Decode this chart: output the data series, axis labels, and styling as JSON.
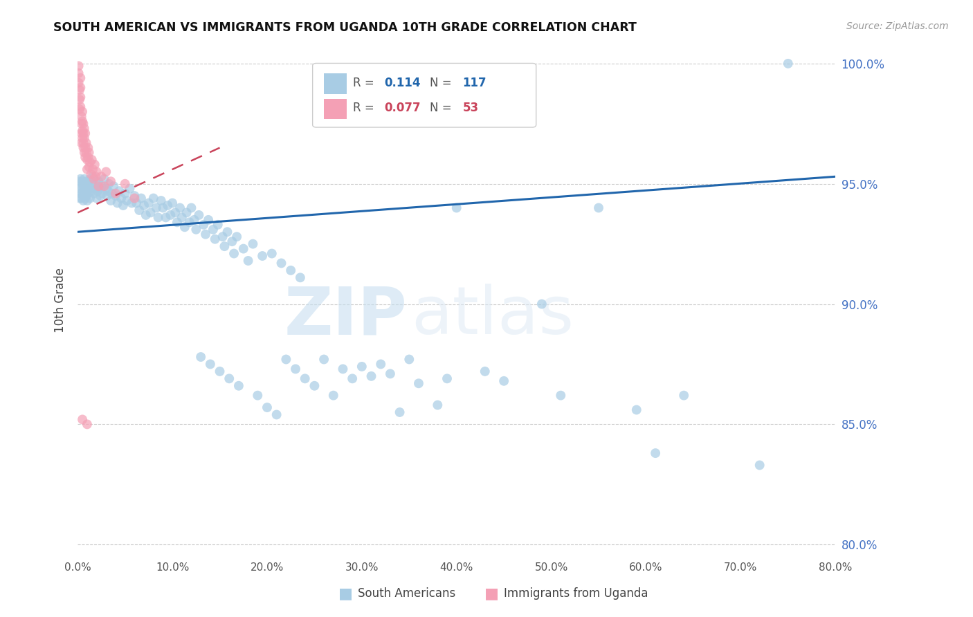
{
  "title": "SOUTH AMERICAN VS IMMIGRANTS FROM UGANDA 10TH GRADE CORRELATION CHART",
  "source": "Source: ZipAtlas.com",
  "ylabel": "10th Grade",
  "watermark_zip": "ZIP",
  "watermark_atlas": "atlas",
  "xmin": 0.0,
  "xmax": 0.8,
  "ymin": 0.795,
  "ymax": 1.008,
  "yticks": [
    0.8,
    0.85,
    0.9,
    0.95,
    1.0
  ],
  "ytick_labels": [
    "80.0%",
    "85.0%",
    "90.0%",
    "95.0%",
    "100.0%"
  ],
  "xticks": [
    0.0,
    0.1,
    0.2,
    0.3,
    0.4,
    0.5,
    0.6,
    0.7,
    0.8
  ],
  "xtick_labels": [
    "0.0%",
    "10.0%",
    "20.0%",
    "30.0%",
    "40.0%",
    "50.0%",
    "60.0%",
    "70.0%",
    "80.0%"
  ],
  "blue_R": 0.114,
  "blue_N": 117,
  "pink_R": 0.077,
  "pink_N": 53,
  "blue_color": "#a8cce4",
  "pink_color": "#f4a0b5",
  "blue_line_color": "#2166ac",
  "pink_line_color": "#c9435a",
  "legend_blue_label": "South Americans",
  "legend_pink_label": "Immigrants from Uganda",
  "blue_trend_x": [
    0.0,
    0.8
  ],
  "blue_trend_y": [
    0.93,
    0.953
  ],
  "pink_trend_x": [
    0.0,
    0.15
  ],
  "pink_trend_y": [
    0.938,
    0.965
  ],
  "blue_points": [
    [
      0.001,
      0.951
    ],
    [
      0.002,
      0.948
    ],
    [
      0.002,
      0.944
    ],
    [
      0.003,
      0.952
    ],
    [
      0.003,
      0.946
    ],
    [
      0.004,
      0.949
    ],
    [
      0.004,
      0.944
    ],
    [
      0.005,
      0.951
    ],
    [
      0.005,
      0.946
    ],
    [
      0.006,
      0.949
    ],
    [
      0.006,
      0.943
    ],
    [
      0.007,
      0.952
    ],
    [
      0.007,
      0.946
    ],
    [
      0.008,
      0.949
    ],
    [
      0.008,
      0.944
    ],
    [
      0.009,
      0.951
    ],
    [
      0.009,
      0.945
    ],
    [
      0.01,
      0.95
    ],
    [
      0.01,
      0.947
    ],
    [
      0.01,
      0.943
    ],
    [
      0.011,
      0.951
    ],
    [
      0.011,
      0.946
    ],
    [
      0.012,
      0.949
    ],
    [
      0.013,
      0.952
    ],
    [
      0.013,
      0.944
    ],
    [
      0.014,
      0.947
    ],
    [
      0.015,
      0.95
    ],
    [
      0.016,
      0.953
    ],
    [
      0.017,
      0.946
    ],
    [
      0.018,
      0.948
    ],
    [
      0.019,
      0.951
    ],
    [
      0.02,
      0.948
    ],
    [
      0.02,
      0.944
    ],
    [
      0.021,
      0.947
    ],
    [
      0.022,
      0.951
    ],
    [
      0.023,
      0.948
    ],
    [
      0.024,
      0.945
    ],
    [
      0.025,
      0.949
    ],
    [
      0.026,
      0.946
    ],
    [
      0.028,
      0.952
    ],
    [
      0.03,
      0.948
    ],
    [
      0.031,
      0.945
    ],
    [
      0.032,
      0.947
    ],
    [
      0.033,
      0.95
    ],
    [
      0.035,
      0.943
    ],
    [
      0.036,
      0.946
    ],
    [
      0.038,
      0.949
    ],
    [
      0.04,
      0.945
    ],
    [
      0.042,
      0.942
    ],
    [
      0.044,
      0.947
    ],
    [
      0.046,
      0.944
    ],
    [
      0.048,
      0.941
    ],
    [
      0.05,
      0.946
    ],
    [
      0.052,
      0.943
    ],
    [
      0.055,
      0.948
    ],
    [
      0.057,
      0.942
    ],
    [
      0.06,
      0.945
    ],
    [
      0.062,
      0.942
    ],
    [
      0.065,
      0.939
    ],
    [
      0.067,
      0.944
    ],
    [
      0.07,
      0.941
    ],
    [
      0.072,
      0.937
    ],
    [
      0.075,
      0.942
    ],
    [
      0.077,
      0.938
    ],
    [
      0.08,
      0.944
    ],
    [
      0.083,
      0.94
    ],
    [
      0.085,
      0.936
    ],
    [
      0.088,
      0.943
    ],
    [
      0.09,
      0.94
    ],
    [
      0.093,
      0.936
    ],
    [
      0.095,
      0.941
    ],
    [
      0.098,
      0.937
    ],
    [
      0.1,
      0.942
    ],
    [
      0.103,
      0.938
    ],
    [
      0.105,
      0.934
    ],
    [
      0.108,
      0.94
    ],
    [
      0.11,
      0.936
    ],
    [
      0.113,
      0.932
    ],
    [
      0.115,
      0.938
    ],
    [
      0.118,
      0.934
    ],
    [
      0.12,
      0.94
    ],
    [
      0.123,
      0.935
    ],
    [
      0.125,
      0.931
    ],
    [
      0.128,
      0.937
    ],
    [
      0.13,
      0.878
    ],
    [
      0.133,
      0.933
    ],
    [
      0.135,
      0.929
    ],
    [
      0.138,
      0.935
    ],
    [
      0.14,
      0.875
    ],
    [
      0.143,
      0.931
    ],
    [
      0.145,
      0.927
    ],
    [
      0.148,
      0.933
    ],
    [
      0.15,
      0.872
    ],
    [
      0.153,
      0.928
    ],
    [
      0.155,
      0.924
    ],
    [
      0.158,
      0.93
    ],
    [
      0.16,
      0.869
    ],
    [
      0.163,
      0.926
    ],
    [
      0.165,
      0.921
    ],
    [
      0.168,
      0.928
    ],
    [
      0.17,
      0.866
    ],
    [
      0.175,
      0.923
    ],
    [
      0.18,
      0.918
    ],
    [
      0.185,
      0.925
    ],
    [
      0.19,
      0.862
    ],
    [
      0.195,
      0.92
    ],
    [
      0.2,
      0.857
    ],
    [
      0.205,
      0.921
    ],
    [
      0.21,
      0.854
    ],
    [
      0.215,
      0.917
    ],
    [
      0.22,
      0.877
    ],
    [
      0.225,
      0.914
    ],
    [
      0.23,
      0.873
    ],
    [
      0.235,
      0.911
    ],
    [
      0.24,
      0.869
    ],
    [
      0.25,
      0.866
    ],
    [
      0.26,
      0.877
    ],
    [
      0.27,
      0.862
    ],
    [
      0.28,
      0.873
    ],
    [
      0.29,
      0.869
    ],
    [
      0.3,
      0.874
    ],
    [
      0.31,
      0.87
    ],
    [
      0.32,
      0.875
    ],
    [
      0.33,
      0.871
    ],
    [
      0.34,
      0.855
    ],
    [
      0.35,
      0.877
    ],
    [
      0.36,
      0.867
    ],
    [
      0.38,
      0.858
    ],
    [
      0.39,
      0.869
    ],
    [
      0.4,
      0.94
    ],
    [
      0.43,
      0.872
    ],
    [
      0.45,
      0.868
    ],
    [
      0.49,
      0.9
    ],
    [
      0.51,
      0.862
    ],
    [
      0.55,
      0.94
    ],
    [
      0.59,
      0.856
    ],
    [
      0.61,
      0.838
    ],
    [
      0.64,
      0.862
    ],
    [
      0.72,
      0.833
    ],
    [
      0.75,
      1.0
    ]
  ],
  "pink_points": [
    [
      0.001,
      0.999
    ],
    [
      0.001,
      0.996
    ],
    [
      0.001,
      0.992
    ],
    [
      0.002,
      0.989
    ],
    [
      0.002,
      0.985
    ],
    [
      0.002,
      0.981
    ],
    [
      0.003,
      0.994
    ],
    [
      0.003,
      0.99
    ],
    [
      0.003,
      0.986
    ],
    [
      0.003,
      0.982
    ],
    [
      0.004,
      0.978
    ],
    [
      0.004,
      0.975
    ],
    [
      0.004,
      0.971
    ],
    [
      0.004,
      0.967
    ],
    [
      0.005,
      0.98
    ],
    [
      0.005,
      0.976
    ],
    [
      0.005,
      0.972
    ],
    [
      0.005,
      0.969
    ],
    [
      0.006,
      0.965
    ],
    [
      0.006,
      0.975
    ],
    [
      0.006,
      0.971
    ],
    [
      0.006,
      0.967
    ],
    [
      0.007,
      0.963
    ],
    [
      0.007,
      0.973
    ],
    [
      0.007,
      0.969
    ],
    [
      0.008,
      0.965
    ],
    [
      0.008,
      0.961
    ],
    [
      0.008,
      0.971
    ],
    [
      0.009,
      0.967
    ],
    [
      0.009,
      0.963
    ],
    [
      0.01,
      0.96
    ],
    [
      0.01,
      0.956
    ],
    [
      0.011,
      0.965
    ],
    [
      0.011,
      0.961
    ],
    [
      0.012,
      0.957
    ],
    [
      0.012,
      0.963
    ],
    [
      0.013,
      0.959
    ],
    [
      0.014,
      0.954
    ],
    [
      0.015,
      0.96
    ],
    [
      0.016,
      0.956
    ],
    [
      0.017,
      0.952
    ],
    [
      0.018,
      0.958
    ],
    [
      0.019,
      0.953
    ],
    [
      0.02,
      0.955
    ],
    [
      0.022,
      0.949
    ],
    [
      0.025,
      0.953
    ],
    [
      0.028,
      0.949
    ],
    [
      0.03,
      0.955
    ],
    [
      0.035,
      0.951
    ],
    [
      0.04,
      0.946
    ],
    [
      0.05,
      0.95
    ],
    [
      0.06,
      0.944
    ],
    [
      0.005,
      0.852
    ],
    [
      0.01,
      0.85
    ]
  ]
}
